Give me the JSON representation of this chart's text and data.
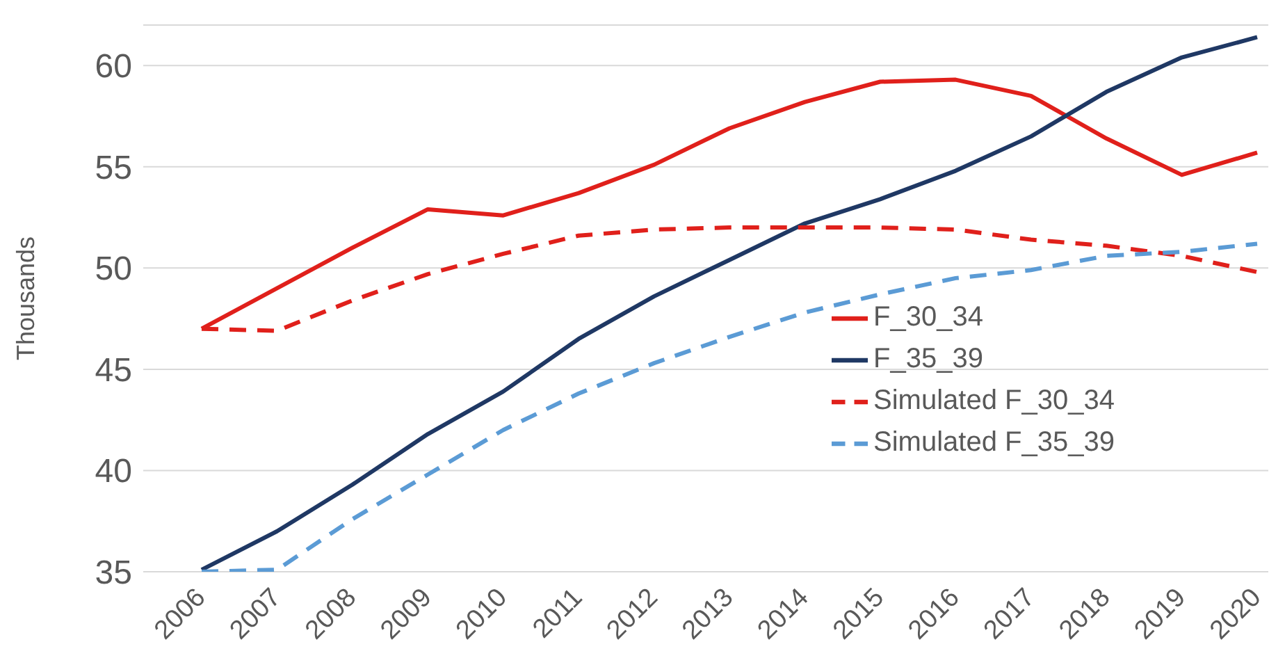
{
  "chart_data": {
    "type": "line",
    "ylabel": "Thousands",
    "categories": [
      "2006",
      "2007",
      "2008",
      "2009",
      "2010",
      "2011",
      "2012",
      "2013",
      "2014",
      "2015",
      "2016",
      "2017",
      "2018",
      "2019",
      "2020"
    ],
    "series": [
      {
        "name": "F_30_34",
        "color": "#e0201b",
        "line_style": "solid",
        "values": [
          47.0,
          49.0,
          51.0,
          52.9,
          52.6,
          53.7,
          55.1,
          56.9,
          58.2,
          59.2,
          59.3,
          58.5,
          56.4,
          54.6,
          55.7
        ]
      },
      {
        "name": "F_35_39",
        "color": "#1f3864",
        "line_style": "solid",
        "values": [
          35.1,
          37.0,
          39.3,
          41.8,
          43.9,
          46.5,
          48.6,
          50.4,
          52.2,
          53.4,
          54.8,
          56.5,
          58.7,
          60.4,
          61.4
        ]
      },
      {
        "name": "Simulated F_30_34",
        "color": "#e0201b",
        "line_style": "dashed",
        "values": [
          47.0,
          46.9,
          48.4,
          49.7,
          50.7,
          51.6,
          51.9,
          52.0,
          52.0,
          52.0,
          51.9,
          51.4,
          51.1,
          50.6,
          49.8
        ]
      },
      {
        "name": "Simulated F_35_39",
        "color": "#5b9bd5",
        "line_style": "dashed",
        "values": [
          35.0,
          35.1,
          37.6,
          39.8,
          42.0,
          43.8,
          45.3,
          46.6,
          47.8,
          48.7,
          49.5,
          49.9,
          50.6,
          50.8,
          51.2
        ]
      }
    ],
    "ylim": [
      35,
      62
    ],
    "yticks": [
      35,
      40,
      45,
      50,
      55,
      60
    ],
    "grid": "y",
    "legend": "right",
    "marker": "none"
  }
}
